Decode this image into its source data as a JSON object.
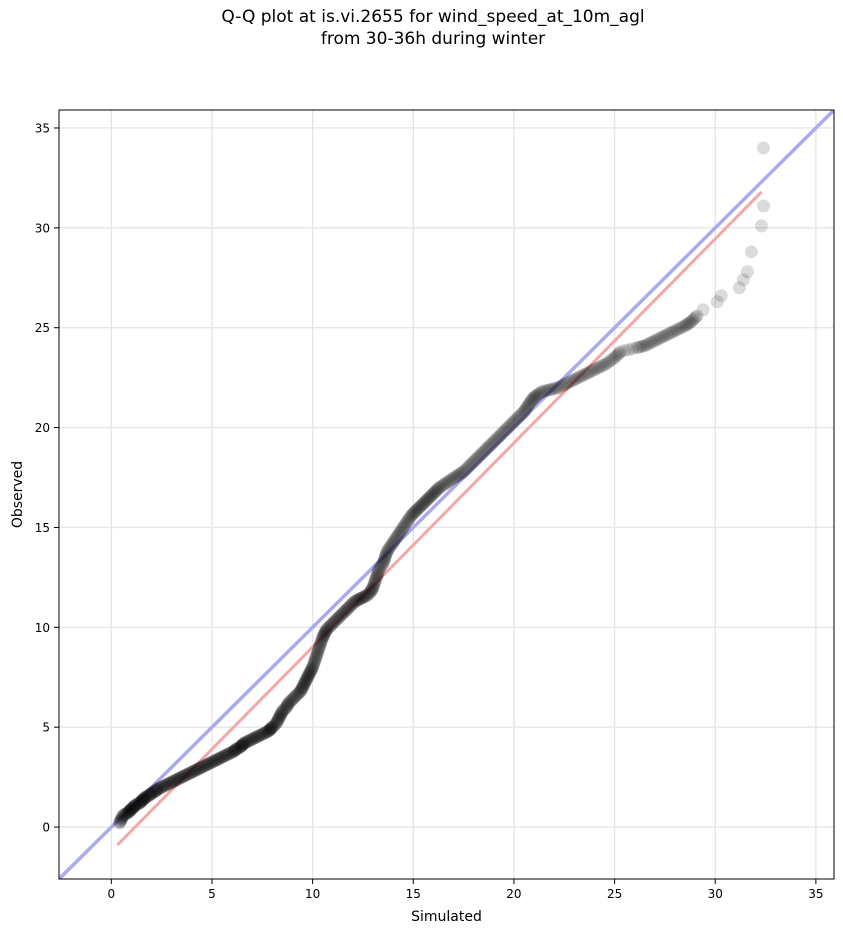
{
  "title": {
    "line1": "Q-Q plot at is.vi.2655 for wind_speed_at_10m_agl",
    "line2": "from 30-36h during winter"
  },
  "chart_data": {
    "type": "scatter",
    "title": "Q-Q plot at is.vi.2655 for wind_speed_at_10m_agl\nfrom 30-36h during winter",
    "xlabel": "Simulated",
    "ylabel": "Observed",
    "xlim": [
      -2.6,
      35.9
    ],
    "ylim": [
      -2.6,
      35.9
    ],
    "xticks": [
      0,
      5,
      10,
      15,
      20,
      25,
      30,
      35
    ],
    "yticks": [
      0,
      5,
      10,
      15,
      20,
      25,
      30,
      35
    ],
    "grid": true,
    "colors": {
      "points": "#000000",
      "identity_line": "#aaaaee",
      "fit_line": "#f4a7a7",
      "grid": "#e6e6e6"
    },
    "identity_line": {
      "x": [
        -2.6,
        35.9
      ],
      "y": [
        -2.6,
        35.9
      ]
    },
    "fit_line": {
      "x": [
        0.3,
        32.3
      ],
      "y": [
        -0.9,
        31.8
      ]
    },
    "points": [
      [
        0.4,
        0.2
      ],
      [
        0.5,
        0.4
      ],
      [
        0.6,
        0.6
      ],
      [
        0.8,
        0.7
      ],
      [
        0.9,
        0.8
      ],
      [
        1.0,
        0.9
      ],
      [
        1.1,
        1.0
      ],
      [
        1.2,
        1.1
      ],
      [
        1.4,
        1.2
      ],
      [
        1.5,
        1.3
      ],
      [
        1.6,
        1.4
      ],
      [
        1.7,
        1.5
      ],
      [
        1.9,
        1.6
      ],
      [
        2.0,
        1.7
      ],
      [
        2.2,
        1.8
      ],
      [
        2.3,
        1.9
      ],
      [
        2.5,
        2.0
      ],
      [
        2.7,
        2.1
      ],
      [
        2.9,
        2.2
      ],
      [
        3.1,
        2.3
      ],
      [
        3.3,
        2.4
      ],
      [
        3.5,
        2.5
      ],
      [
        3.7,
        2.6
      ],
      [
        3.9,
        2.7
      ],
      [
        4.1,
        2.8
      ],
      [
        4.3,
        2.9
      ],
      [
        4.5,
        3.0
      ],
      [
        4.7,
        3.1
      ],
      [
        4.9,
        3.2
      ],
      [
        5.1,
        3.3
      ],
      [
        5.3,
        3.4
      ],
      [
        5.5,
        3.5
      ],
      [
        5.7,
        3.6
      ],
      [
        5.9,
        3.7
      ],
      [
        6.1,
        3.8
      ],
      [
        6.2,
        3.9
      ],
      [
        6.4,
        4.0
      ],
      [
        6.5,
        4.1
      ],
      [
        6.6,
        4.2
      ],
      [
        6.8,
        4.3
      ],
      [
        7.0,
        4.4
      ],
      [
        7.2,
        4.5
      ],
      [
        7.4,
        4.6
      ],
      [
        7.6,
        4.7
      ],
      [
        7.8,
        4.8
      ],
      [
        7.9,
        4.9
      ],
      [
        8.0,
        5.0
      ],
      [
        8.2,
        5.2
      ],
      [
        8.3,
        5.4
      ],
      [
        8.4,
        5.6
      ],
      [
        8.5,
        5.8
      ],
      [
        8.7,
        6.0
      ],
      [
        8.8,
        6.2
      ],
      [
        9.0,
        6.4
      ],
      [
        9.2,
        6.6
      ],
      [
        9.4,
        6.8
      ],
      [
        9.5,
        7.0
      ],
      [
        9.6,
        7.2
      ],
      [
        9.7,
        7.4
      ],
      [
        9.8,
        7.6
      ],
      [
        9.9,
        7.8
      ],
      [
        10.0,
        8.0
      ],
      [
        10.1,
        8.3
      ],
      [
        10.2,
        8.6
      ],
      [
        10.3,
        8.9
      ],
      [
        10.4,
        9.2
      ],
      [
        10.5,
        9.5
      ],
      [
        10.6,
        9.7
      ],
      [
        10.7,
        9.9
      ],
      [
        10.9,
        10.1
      ],
      [
        11.1,
        10.3
      ],
      [
        11.3,
        10.5
      ],
      [
        11.5,
        10.7
      ],
      [
        11.7,
        10.9
      ],
      [
        11.9,
        11.1
      ],
      [
        12.1,
        11.3
      ],
      [
        12.3,
        11.4
      ],
      [
        12.5,
        11.5
      ],
      [
        12.7,
        11.6
      ],
      [
        12.9,
        11.8
      ],
      [
        13.0,
        12.0
      ],
      [
        13.1,
        12.3
      ],
      [
        13.2,
        12.6
      ],
      [
        13.3,
        12.9
      ],
      [
        13.5,
        13.2
      ],
      [
        13.6,
        13.5
      ],
      [
        13.7,
        13.8
      ],
      [
        13.9,
        14.1
      ],
      [
        14.1,
        14.4
      ],
      [
        14.3,
        14.7
      ],
      [
        14.5,
        15.0
      ],
      [
        14.7,
        15.3
      ],
      [
        14.9,
        15.6
      ],
      [
        15.1,
        15.8
      ],
      [
        15.3,
        16.0
      ],
      [
        15.5,
        16.2
      ],
      [
        15.7,
        16.4
      ],
      [
        15.9,
        16.6
      ],
      [
        16.1,
        16.8
      ],
      [
        16.3,
        17.0
      ],
      [
        16.6,
        17.2
      ],
      [
        16.9,
        17.4
      ],
      [
        17.2,
        17.6
      ],
      [
        17.5,
        17.8
      ],
      [
        17.8,
        18.1
      ],
      [
        18.1,
        18.4
      ],
      [
        18.4,
        18.7
      ],
      [
        18.7,
        19.0
      ],
      [
        19.0,
        19.3
      ],
      [
        19.3,
        19.6
      ],
      [
        19.6,
        19.9
      ],
      [
        19.9,
        20.2
      ],
      [
        20.2,
        20.5
      ],
      [
        20.5,
        20.8
      ],
      [
        20.7,
        21.1
      ],
      [
        20.9,
        21.4
      ],
      [
        21.1,
        21.6
      ],
      [
        21.4,
        21.8
      ],
      [
        21.8,
        21.9
      ],
      [
        22.2,
        22.0
      ],
      [
        22.6,
        22.2
      ],
      [
        23.0,
        22.4
      ],
      [
        23.4,
        22.6
      ],
      [
        23.8,
        22.8
      ],
      [
        24.2,
        23.0
      ],
      [
        24.6,
        23.2
      ],
      [
        25.0,
        23.5
      ],
      [
        25.3,
        23.8
      ],
      [
        26.1,
        24.0
      ],
      [
        26.5,
        24.1
      ],
      [
        26.9,
        24.3
      ],
      [
        27.3,
        24.5
      ],
      [
        27.7,
        24.7
      ],
      [
        28.1,
        24.9
      ],
      [
        28.5,
        25.1
      ],
      [
        28.8,
        25.3
      ],
      [
        29.1,
        25.6
      ],
      [
        29.4,
        25.9
      ],
      [
        30.1,
        26.3
      ],
      [
        30.3,
        26.6
      ],
      [
        31.2,
        27.0
      ],
      [
        31.4,
        27.4
      ],
      [
        31.6,
        27.8
      ],
      [
        31.8,
        28.8
      ],
      [
        32.3,
        30.1
      ],
      [
        32.4,
        31.1
      ],
      [
        32.4,
        34.0
      ]
    ]
  }
}
